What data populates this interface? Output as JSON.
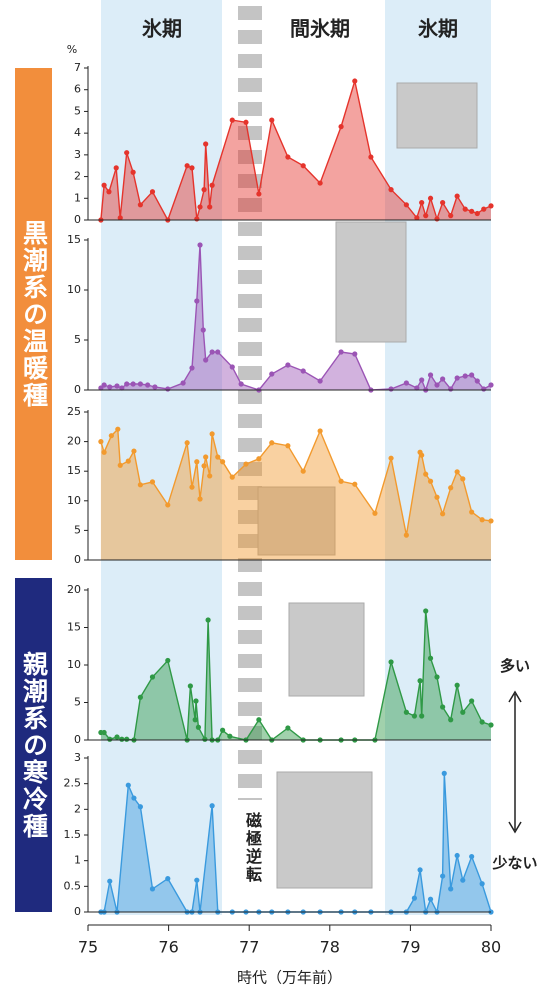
{
  "chart_data": [
    {
      "type": "area",
      "y_unit": "%",
      "color": "#e5342c",
      "ylim": [
        0,
        7
      ],
      "yticks": [
        0,
        1,
        2,
        3,
        4,
        5,
        6,
        7
      ],
      "x": [
        75.16,
        75.2,
        75.26,
        75.35,
        75.4,
        75.48,
        75.56,
        75.65,
        75.8,
        75.99,
        76.23,
        76.29,
        76.35,
        76.39,
        76.44,
        76.46,
        76.51,
        76.54,
        76.79,
        76.96,
        77.12,
        77.28,
        77.48,
        77.67,
        77.88,
        78.14,
        78.31,
        78.51,
        78.76,
        78.95,
        79.08,
        79.14,
        79.19,
        79.25,
        79.33,
        79.4,
        79.5,
        79.58,
        79.68,
        79.76,
        79.83,
        79.91,
        80.0
      ],
      "values": [
        0,
        1.6,
        1.3,
        2.4,
        0.1,
        3.1,
        2.2,
        0.7,
        1.3,
        0,
        2.5,
        2.4,
        0.05,
        0.6,
        1.4,
        3.5,
        0.6,
        1.6,
        4.6,
        4.5,
        1.2,
        4.6,
        2.9,
        2.5,
        1.7,
        4.3,
        6.4,
        2.9,
        1.4,
        0.7,
        0.1,
        0.8,
        0.2,
        1.0,
        0.05,
        0.8,
        0.2,
        1.1,
        0.5,
        0.4,
        0.3,
        0.5,
        0.65
      ]
    },
    {
      "type": "area",
      "color": "#9b55b5",
      "ylim": [
        0,
        15
      ],
      "yticks": [
        0,
        5,
        10,
        15
      ],
      "x": [
        75.16,
        75.2,
        75.27,
        75.36,
        75.42,
        75.48,
        75.56,
        75.65,
        75.74,
        75.83,
        75.99,
        76.18,
        76.29,
        76.35,
        76.39,
        76.43,
        76.46,
        76.54,
        76.61,
        76.79,
        76.9,
        77.12,
        77.28,
        77.48,
        77.67,
        77.88,
        78.14,
        78.31,
        78.51,
        78.76,
        78.95,
        79.08,
        79.14,
        79.19,
        79.25,
        79.33,
        79.4,
        79.5,
        79.58,
        79.68,
        79.76,
        79.83,
        79.91,
        80.0
      ],
      "values": [
        0.2,
        0.5,
        0.3,
        0.4,
        0.2,
        0.6,
        0.6,
        0.6,
        0.5,
        0.3,
        0.1,
        0.7,
        2.2,
        8.9,
        14.5,
        6,
        3,
        3.8,
        3.8,
        2.3,
        0.6,
        0,
        1.6,
        2.5,
        1.9,
        0.9,
        3.8,
        3.6,
        0,
        0.1,
        0.7,
        0.2,
        1.0,
        0,
        1.5,
        0.5,
        1.1,
        0.1,
        1.2,
        1.4,
        1.5,
        0.9,
        0.1,
        0.5
      ]
    },
    {
      "type": "area",
      "color": "#f29a2e",
      "ylim": [
        0,
        25
      ],
      "yticks": [
        0,
        5,
        10,
        15,
        20,
        25
      ],
      "x": [
        75.16,
        75.2,
        75.29,
        75.37,
        75.4,
        75.5,
        75.57,
        75.65,
        75.8,
        75.99,
        76.23,
        76.29,
        76.35,
        76.39,
        76.44,
        76.46,
        76.51,
        76.54,
        76.61,
        76.67,
        76.79,
        76.96,
        77.12,
        77.28,
        77.48,
        77.67,
        77.88,
        78.14,
        78.31,
        78.56,
        78.76,
        78.95,
        79.12,
        79.14,
        79.19,
        79.25,
        79.33,
        79.4,
        79.5,
        79.58,
        79.65,
        79.76,
        79.89,
        80.0
      ],
      "values": [
        20,
        18.2,
        21,
        22.1,
        16,
        16.7,
        18.4,
        12.7,
        13.2,
        9.3,
        19.8,
        12.3,
        16.6,
        10.3,
        15.9,
        17.4,
        14.2,
        21.3,
        17.4,
        16.6,
        14,
        16.2,
        17.1,
        19.8,
        19.3,
        15,
        21.8,
        13.3,
        12.8,
        7.9,
        17.2,
        4.2,
        18.2,
        17.7,
        14.5,
        13.3,
        10.6,
        7.8,
        12.2,
        14.9,
        13.7,
        8.1,
        6.8,
        6.6
      ]
    },
    {
      "type": "area",
      "color": "#2f9946",
      "ylim": [
        0,
        20
      ],
      "yticks": [
        0,
        5,
        10,
        15,
        20
      ],
      "x": [
        75.16,
        75.2,
        75.27,
        75.36,
        75.42,
        75.48,
        75.57,
        75.65,
        75.8,
        75.99,
        76.23,
        76.27,
        76.33,
        76.34,
        76.37,
        76.45,
        76.49,
        76.54,
        76.61,
        76.67,
        76.76,
        76.96,
        77.12,
        77.28,
        77.48,
        77.67,
        77.88,
        78.14,
        78.31,
        78.56,
        78.76,
        78.95,
        79.05,
        79.12,
        79.14,
        79.19,
        79.25,
        79.33,
        79.4,
        79.5,
        79.58,
        79.65,
        79.76,
        79.89,
        80.0
      ],
      "values": [
        1.0,
        1.0,
        0.1,
        0.4,
        0.1,
        0.1,
        0,
        5.7,
        8.4,
        10.6,
        0,
        7.2,
        2.7,
        5.2,
        1.7,
        0.1,
        16,
        0,
        0,
        1.3,
        0.5,
        0,
        2.7,
        0,
        1.6,
        0,
        0,
        0,
        0,
        0,
        10.4,
        3.7,
        3.2,
        7.9,
        3.2,
        17.2,
        10.9,
        8.4,
        4.4,
        2.7,
        7.3,
        3.7,
        5.2,
        2.4,
        2.0
      ]
    },
    {
      "type": "area",
      "color": "#3a9ade",
      "ylim": [
        0,
        3
      ],
      "yticks": [
        0,
        0.5,
        1,
        1.5,
        2,
        2.5,
        3
      ],
      "xlim": [
        75,
        80
      ],
      "xticks": [
        75,
        76,
        77,
        78,
        79,
        80
      ],
      "xlabel": "時代（万年前）",
      "x": [
        75.16,
        75.2,
        75.27,
        75.36,
        75.5,
        75.57,
        75.65,
        75.8,
        75.99,
        76.23,
        76.29,
        76.35,
        76.39,
        76.54,
        76.61,
        76.79,
        76.96,
        77.12,
        77.28,
        77.48,
        77.67,
        77.88,
        78.14,
        78.31,
        78.51,
        78.76,
        78.95,
        79.05,
        79.12,
        79.19,
        79.25,
        79.33,
        79.4,
        79.42,
        79.5,
        79.58,
        79.65,
        79.76,
        79.89,
        80.0
      ],
      "values": [
        0,
        0,
        0.6,
        0,
        2.47,
        2.22,
        2.05,
        0.45,
        0.65,
        0,
        0,
        0.62,
        0,
        2.07,
        0,
        0,
        0,
        0,
        0,
        0,
        0,
        0,
        0,
        0,
        0,
        0,
        0,
        0.27,
        0.82,
        0,
        0.25,
        0,
        0.7,
        2.7,
        0.45,
        1.1,
        0.62,
        1.08,
        0.55,
        0
      ]
    }
  ],
  "periods": [
    "氷期",
    "間氷期",
    "氷期"
  ],
  "groups": [
    "黒潮系の温暖種",
    "親潮系の寒冷種"
  ],
  "abundance": [
    "多い",
    "少ない"
  ],
  "annotation": "磁極逆転"
}
